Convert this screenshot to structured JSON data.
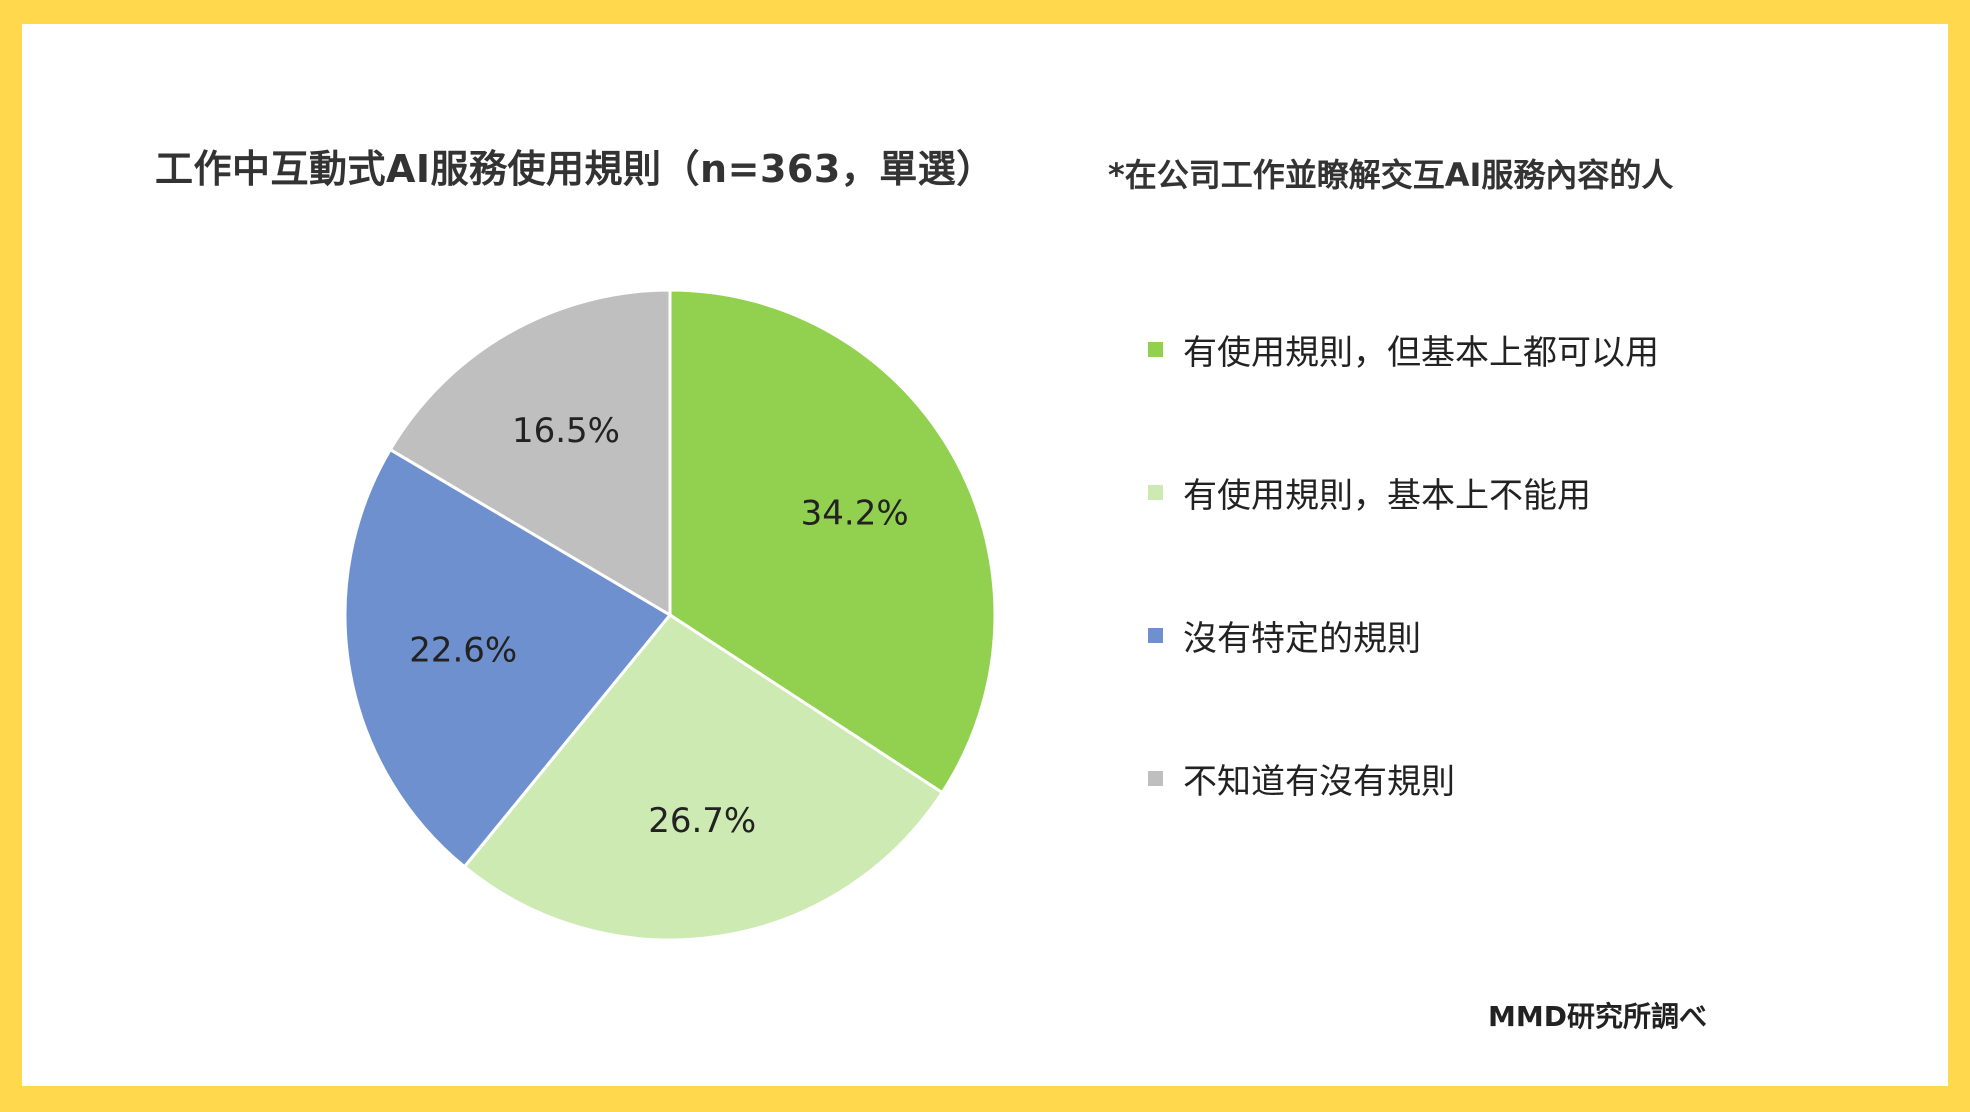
{
  "title": "工作中互動式AI服務使用規則（n=363，單選）",
  "subtitle": "*在公司工作並瞭解交互AI服務內容的人",
  "credit": "MMD研究所調べ",
  "chart_data": {
    "type": "pie",
    "title": "工作中互動式AI服務使用規則（n=363，單選）",
    "start_angle_deg": 0,
    "direction": "clockwise",
    "legend_position": "right",
    "slices": [
      {
        "name": "有使用規則，但基本上都可以用",
        "value": 34.2,
        "label": "34.2%",
        "color": "#92D050"
      },
      {
        "name": "有使用規則，基本上不能用",
        "value": 26.7,
        "label": "26.7%",
        "color": "#CDEAB3"
      },
      {
        "name": "沒有特定的規則",
        "value": 22.6,
        "label": "22.6%",
        "color": "#6F90CF"
      },
      {
        "name": "不知道有沒有規則",
        "value": 16.5,
        "label": "16.5%",
        "color": "#BFBFBF"
      }
    ]
  }
}
